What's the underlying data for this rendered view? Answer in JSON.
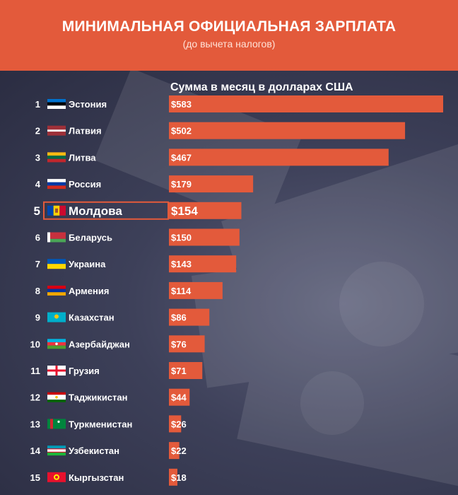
{
  "header": {
    "title": "МИНИМАЛЬНАЯ ОФИЦИАЛЬНАЯ ЗАРПЛАТА",
    "subtitle": "(до вычета налогов)"
  },
  "colors": {
    "accent": "#e35a3b",
    "highlight_border": "#e35a3b",
    "text": "#ffffff"
  },
  "chart_data": {
    "type": "bar",
    "orientation": "horizontal",
    "title": "",
    "xlabel": "",
    "ylabel": "Сумма в месяц в долларах США",
    "xlim": [
      0,
      583
    ],
    "highlight": "Молдова",
    "ranks": [
      "1",
      "2",
      "3",
      "4",
      "5",
      "6",
      "7",
      "8",
      "9",
      "10",
      "11",
      "12",
      "13",
      "14",
      "15"
    ],
    "categories": [
      "Эстония",
      "Латвия",
      "Литва",
      "Россия",
      "Молдова",
      "Беларусь",
      "Украина",
      "Армения",
      "Казахстан",
      "Азербайджан",
      "Грузия",
      "Таджикистан",
      "Туркменистан",
      "Узбекистан",
      "Кыргызстан"
    ],
    "values": [
      583,
      502,
      467,
      179,
      154,
      150,
      143,
      114,
      86,
      76,
      71,
      44,
      26,
      22,
      18
    ],
    "value_labels": [
      "$583",
      "$502",
      "$467",
      "$179",
      "$154",
      "$150",
      "$143",
      "$114",
      "$86",
      "$76",
      "$71",
      "$44",
      "$26",
      "$22",
      "$18"
    ],
    "flags": [
      "estonia-flag",
      "latvia-flag",
      "lithuania-flag",
      "russia-flag",
      "moldova-flag",
      "belarus-flag",
      "ukraine-flag",
      "armenia-flag",
      "kazakhstan-flag",
      "azerbaijan-flag",
      "georgia-flag",
      "tajikistan-flag",
      "turkmenistan-flag",
      "uzbekistan-flag",
      "kyrgyzstan-flag"
    ]
  }
}
